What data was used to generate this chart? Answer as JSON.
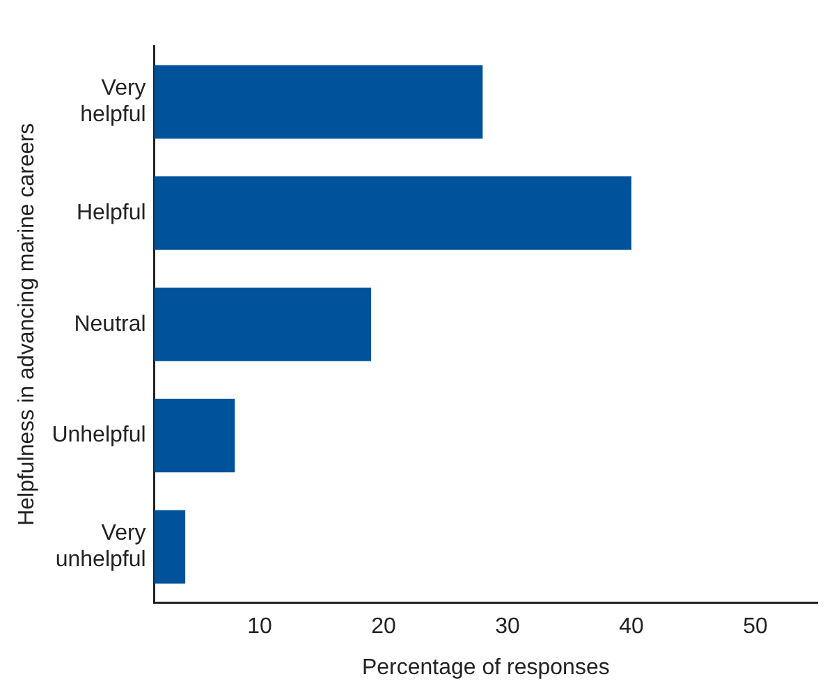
{
  "chart_data": {
    "type": "bar",
    "orientation": "horizontal",
    "xlabel": "Percentage of responses",
    "ylabel": "Helpfulness in advancing marine careers",
    "categories": [
      "Very helpful",
      "Helpful",
      "Neutral",
      "Unhelpful",
      "Very unhelpful"
    ],
    "values": [
      28,
      40,
      19,
      8,
      4
    ],
    "color": "#00529b",
    "xlim": [
      1.5,
      55
    ],
    "xticks": [
      10,
      20,
      30,
      40,
      50
    ],
    "grid": false,
    "legend": false
  }
}
